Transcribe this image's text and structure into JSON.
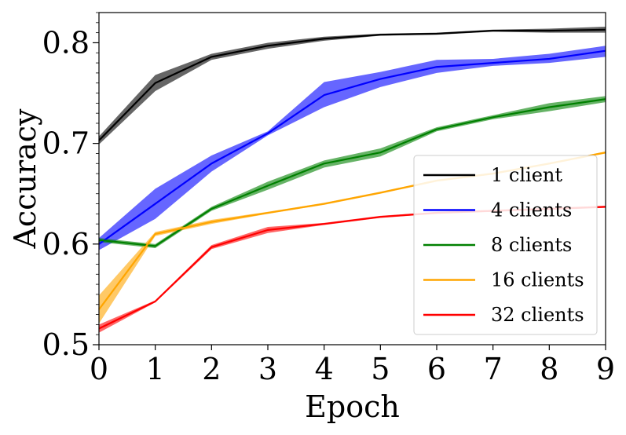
{
  "chart_data": {
    "type": "line",
    "title": "",
    "xlabel": "Epoch",
    "ylabel": "Accuracy",
    "x": [
      0,
      1,
      2,
      3,
      4,
      5,
      6,
      7,
      8,
      9
    ],
    "xlim": [
      0,
      9
    ],
    "ylim": [
      0.5,
      0.83
    ],
    "xticks": [
      "0",
      "1",
      "2",
      "3",
      "4",
      "5",
      "6",
      "7",
      "8",
      "9"
    ],
    "yticks": [
      "0.5",
      "0.6",
      "0.7",
      "0.8"
    ],
    "ytick_values": [
      0.5,
      0.6,
      0.7,
      0.8
    ],
    "grid": false,
    "legend_position": "lower-right",
    "series": [
      {
        "name": "1 client",
        "color": "#000000",
        "values": [
          0.703,
          0.76,
          0.786,
          0.797,
          0.804,
          0.808,
          0.809,
          0.812,
          0.812,
          0.813
        ],
        "lower": [
          0.699,
          0.752,
          0.783,
          0.794,
          0.802,
          0.807,
          0.808,
          0.811,
          0.81,
          0.81
        ],
        "upper": [
          0.707,
          0.768,
          0.789,
          0.8,
          0.806,
          0.809,
          0.81,
          0.813,
          0.814,
          0.816
        ]
      },
      {
        "name": "4 clients",
        "color": "#0000ff",
        "values": [
          0.6,
          0.64,
          0.68,
          0.71,
          0.748,
          0.764,
          0.776,
          0.78,
          0.784,
          0.792
        ],
        "lower": [
          0.594,
          0.625,
          0.672,
          0.708,
          0.736,
          0.756,
          0.77,
          0.777,
          0.78,
          0.786
        ],
        "upper": [
          0.606,
          0.655,
          0.688,
          0.712,
          0.761,
          0.771,
          0.783,
          0.784,
          0.789,
          0.797
        ]
      },
      {
        "name": "8 clients",
        "color": "#008000",
        "values": [
          0.604,
          0.598,
          0.635,
          0.658,
          0.68,
          0.691,
          0.714,
          0.726,
          0.736,
          0.744
        ],
        "lower": [
          0.602,
          0.596,
          0.633,
          0.654,
          0.676,
          0.687,
          0.712,
          0.724,
          0.732,
          0.741
        ],
        "upper": [
          0.606,
          0.6,
          0.637,
          0.662,
          0.683,
          0.695,
          0.716,
          0.728,
          0.74,
          0.747
        ]
      },
      {
        "name": "16 clients",
        "color": "#ffa500",
        "values": [
          0.535,
          0.61,
          0.622,
          0.631,
          0.64,
          0.651,
          0.663,
          0.67,
          0.68,
          0.691
        ],
        "lower": [
          0.521,
          0.608,
          0.62,
          0.63,
          0.639,
          0.65,
          0.662,
          0.669,
          0.679,
          0.69
        ],
        "upper": [
          0.549,
          0.612,
          0.624,
          0.632,
          0.641,
          0.652,
          0.664,
          0.671,
          0.681,
          0.692
        ]
      },
      {
        "name": "32 clients",
        "color": "#ff0000",
        "values": [
          0.516,
          0.543,
          0.597,
          0.614,
          0.62,
          0.627,
          0.631,
          0.633,
          0.635,
          0.637
        ],
        "lower": [
          0.512,
          0.542,
          0.595,
          0.611,
          0.619,
          0.626,
          0.63,
          0.632,
          0.634,
          0.636
        ],
        "upper": [
          0.52,
          0.544,
          0.599,
          0.617,
          0.621,
          0.628,
          0.632,
          0.634,
          0.636,
          0.638
        ]
      }
    ]
  }
}
